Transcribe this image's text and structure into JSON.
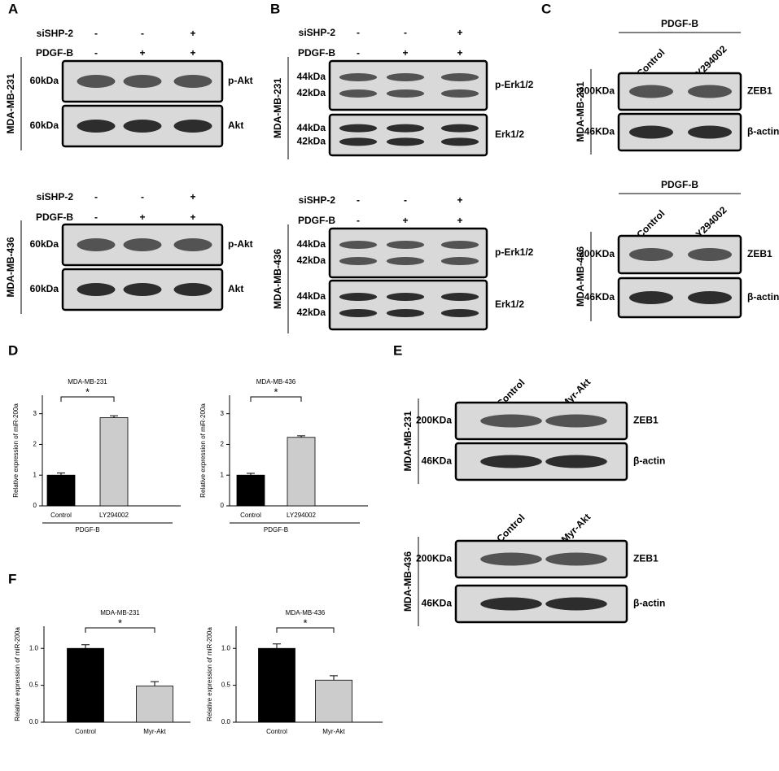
{
  "panels": {
    "A": {
      "label": "A",
      "blots": [
        {
          "cell_line": "MDA-MB-231",
          "conditions": [
            {
              "name": "siSHP-2",
              "signs": [
                "-",
                "-",
                "+"
              ]
            },
            {
              "name": "PDGF-B",
              "signs": [
                "-",
                "+",
                "+"
              ]
            }
          ],
          "rows": [
            {
              "kda": [
                "60kDa"
              ],
              "protein": "p-Akt"
            },
            {
              "kda": [
                "60kDa"
              ],
              "protein": "Akt"
            }
          ]
        },
        {
          "cell_line": "MDA-MB-436",
          "conditions": [
            {
              "name": "siSHP-2",
              "signs": [
                "-",
                "-",
                "+"
              ]
            },
            {
              "name": "PDGF-B",
              "signs": [
                "-",
                "+",
                "+"
              ]
            }
          ],
          "rows": [
            {
              "kda": [
                "60kDa"
              ],
              "protein": "p-Akt"
            },
            {
              "kda": [
                "60kDa"
              ],
              "protein": "Akt"
            }
          ]
        }
      ]
    },
    "B": {
      "label": "B",
      "blots": [
        {
          "cell_line": "MDA-MB-231",
          "conditions": [
            {
              "name": "siSHP-2",
              "signs": [
                "-",
                "-",
                "+"
              ]
            },
            {
              "name": "PDGF-B",
              "signs": [
                "-",
                "+",
                "+"
              ]
            }
          ],
          "rows": [
            {
              "kda": [
                "44kDa",
                "42kDa"
              ],
              "protein": "p-Erk1/2"
            },
            {
              "kda": [
                "44kDa",
                "42kDa"
              ],
              "protein": "Erk1/2"
            }
          ]
        },
        {
          "cell_line": "MDA-MB-436",
          "conditions": [
            {
              "name": "siSHP-2",
              "signs": [
                "-",
                "-",
                "+"
              ]
            },
            {
              "name": "PDGF-B",
              "signs": [
                "-",
                "+",
                "+"
              ]
            }
          ],
          "rows": [
            {
              "kda": [
                "44kDa",
                "42kDa"
              ],
              "protein": "p-Erk1/2"
            },
            {
              "kda": [
                "44kDa",
                "42kDa"
              ],
              "protein": "Erk1/2"
            }
          ]
        }
      ]
    },
    "C": {
      "label": "C",
      "blots": [
        {
          "cell_line": "MDA-MB-231",
          "treatment": "PDGF-B",
          "lanes": [
            "Control",
            "LY294002"
          ],
          "rows": [
            {
              "kda": [
                "200KDa"
              ],
              "protein": "ZEB1"
            },
            {
              "kda": [
                "46KDa"
              ],
              "protein": "β-actin"
            }
          ]
        },
        {
          "cell_line": "MDA-MB-436",
          "treatment": "PDGF-B",
          "lanes": [
            "Control",
            "LY294002"
          ],
          "rows": [
            {
              "kda": [
                "200KDa"
              ],
              "protein": "ZEB1"
            },
            {
              "kda": [
                "46KDa"
              ],
              "protein": "β-actin"
            }
          ]
        }
      ]
    },
    "D": {
      "label": "D"
    },
    "E": {
      "label": "E",
      "blots": [
        {
          "cell_line": "MDA-MB-231",
          "lanes": [
            "Control",
            "Myr-Akt"
          ],
          "rows": [
            {
              "kda": [
                "200KDa"
              ],
              "protein": "ZEB1"
            },
            {
              "kda": [
                "46KDa"
              ],
              "protein": "β-actin"
            }
          ]
        },
        {
          "cell_line": "MDA-MB-436",
          "lanes": [
            "Control",
            "Myr-Akt"
          ],
          "rows": [
            {
              "kda": [
                "200KDa"
              ],
              "protein": "ZEB1"
            },
            {
              "kda": [
                "46KDa"
              ],
              "protein": "β-actin"
            }
          ]
        }
      ]
    },
    "F": {
      "label": "F"
    }
  },
  "chart_data": [
    {
      "type": "bar",
      "title": "MDA-MB-231",
      "categories": [
        "Control",
        "LY294002"
      ],
      "values": [
        1.0,
        2.87
      ],
      "errors": [
        0.07,
        0.06
      ],
      "colors": [
        "#000000",
        "#cccccc"
      ],
      "ylabel": "Relative expression of miR-200a",
      "group_label": "PDGF-B",
      "significance": "*",
      "ylim": [
        0,
        3.6
      ],
      "yticks": [
        0,
        1,
        2,
        3
      ]
    },
    {
      "type": "bar",
      "title": "MDA-MB-436",
      "categories": [
        "Control",
        "LY294002"
      ],
      "values": [
        1.0,
        2.23
      ],
      "errors": [
        0.06,
        0.05
      ],
      "colors": [
        "#000000",
        "#cccccc"
      ],
      "ylabel": "Relative expression of miR-200a",
      "group_label": "PDGF-B",
      "significance": "*",
      "ylim": [
        0,
        3.6
      ],
      "yticks": [
        0,
        1,
        2,
        3
      ]
    },
    {
      "type": "bar",
      "title": "MDA-MB-231",
      "categories": [
        "Control",
        "Myr-Akt"
      ],
      "values": [
        1.0,
        0.49
      ],
      "errors": [
        0.05,
        0.06
      ],
      "colors": [
        "#000000",
        "#cccccc"
      ],
      "ylabel": "Relative expression of miR-200a",
      "significance": "*",
      "ylim": [
        0,
        1.3
      ],
      "yticks": [
        {
          "value": 0,
          "label": "0.0"
        },
        {
          "value": 0.5,
          "label": "0.5"
        },
        {
          "value": 1,
          "label": "1.0"
        }
      ]
    },
    {
      "type": "bar",
      "title": "MDA-MB-436",
      "categories": [
        "Control",
        "Myr-Akt"
      ],
      "values": [
        1.0,
        0.57
      ],
      "errors": [
        0.06,
        0.06
      ],
      "colors": [
        "#000000",
        "#cccccc"
      ],
      "ylabel": "Relative expression of miR-200a",
      "significance": "*",
      "ylim": [
        0,
        1.3
      ],
      "yticks": [
        {
          "value": 0,
          "label": "0.0"
        },
        {
          "value": 0.5,
          "label": "0.5"
        },
        {
          "value": 1,
          "label": "1.0"
        }
      ]
    }
  ]
}
